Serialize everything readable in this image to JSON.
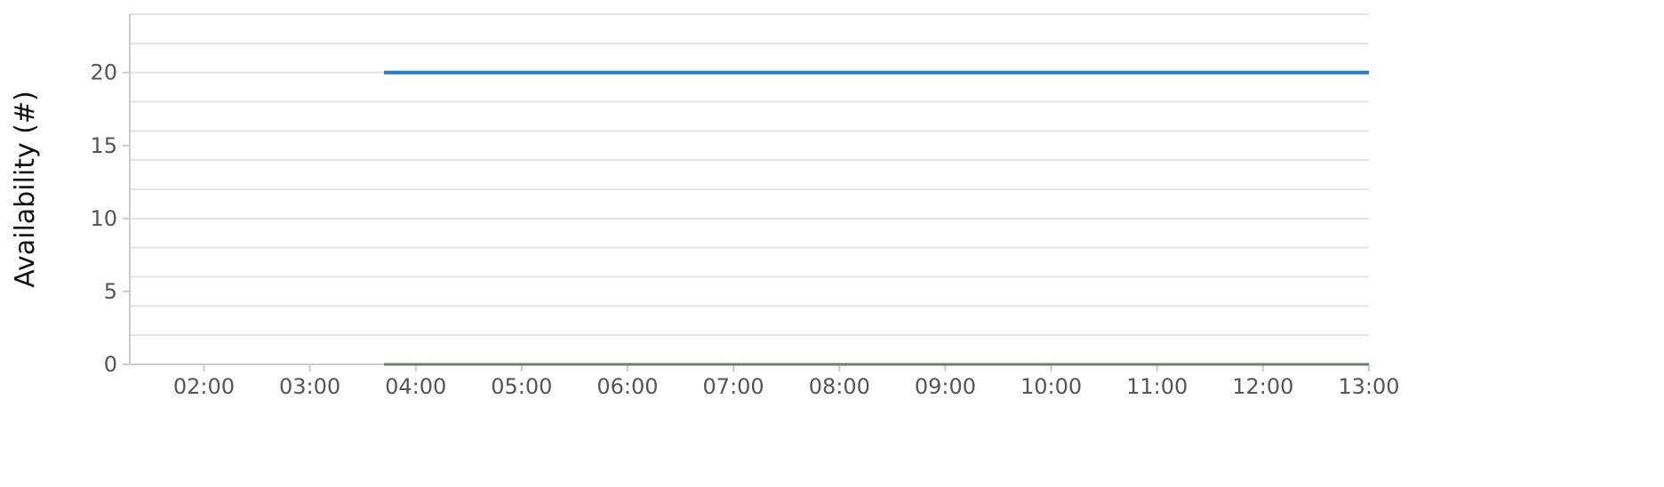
{
  "chart_data": {
    "type": "line",
    "title": "",
    "xlabel": "",
    "ylabel": "Availability (#)",
    "x_ticks": [
      "02:00",
      "03:00",
      "04:00",
      "05:00",
      "06:00",
      "07:00",
      "08:00",
      "09:00",
      "10:00",
      "11:00",
      "12:00",
      "13:00"
    ],
    "xlim": [
      "01:18",
      "13:00"
    ],
    "y_ticks": [
      0,
      5,
      10,
      15,
      20
    ],
    "ylim": [
      0,
      24
    ],
    "grid": true,
    "legend": "none",
    "series": [
      {
        "color": "#1f7fc4",
        "x": [
          "03:42",
          "13:00"
        ],
        "y": [
          20,
          20
        ]
      },
      {
        "color": "#6e7f6e",
        "x": [
          "03:42",
          "13:00"
        ],
        "y": [
          0,
          0
        ]
      }
    ]
  }
}
